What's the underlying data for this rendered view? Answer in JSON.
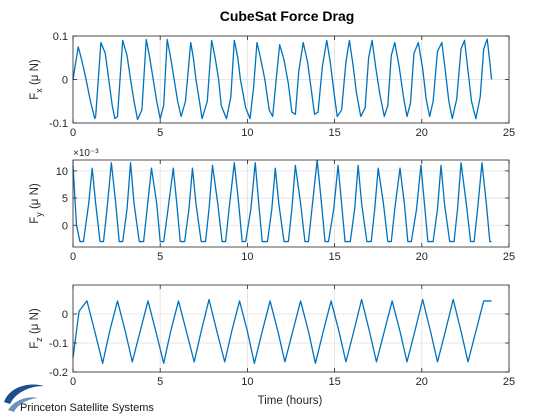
{
  "figure": {
    "title": "CubeSat Force Drag",
    "xlabel": "Time (hours)",
    "logo_text": "Princeton Satellite Systems"
  },
  "colors": {
    "line": "#0072BD",
    "axis": "#262626",
    "grid": "#dfdfdf",
    "logo_blue": "#1f4e8c"
  },
  "chart_data": [
    {
      "type": "line",
      "ylabel": {
        "main": "F",
        "sub": "x",
        "rest": " (μ N)"
      },
      "xlim": [
        0,
        25
      ],
      "ylim": [
        -0.1,
        0.1
      ],
      "xticks": [
        0,
        5,
        10,
        15,
        20,
        25
      ],
      "yticks": [
        -0.1,
        0,
        0.1
      ],
      "ytick_labels": [
        "-0.1",
        "0",
        "0.1"
      ],
      "exponent_label": "",
      "grid": true,
      "series": [
        {
          "x": [
            0,
            0.3,
            0.5,
            0.75,
            1.0,
            1.25,
            1.3,
            1.6,
            1.85,
            2.05,
            2.25,
            2.4,
            2.55,
            2.85,
            3.1,
            3.3,
            3.5,
            3.7,
            3.95,
            4.2,
            4.4,
            4.6,
            4.8,
            5.0,
            5.2,
            5.4,
            5.6,
            5.8,
            6.0,
            6.2,
            6.45,
            6.75,
            6.9,
            7.05,
            7.25,
            7.4,
            7.7,
            7.95,
            8.15,
            8.35,
            8.5,
            8.8,
            9.05,
            9.25,
            9.45,
            9.6,
            9.9,
            10.15,
            10.35,
            10.55,
            10.75,
            11.0,
            11.25,
            11.45,
            11.65,
            11.85,
            12.1,
            12.35,
            12.55,
            12.75,
            12.95,
            13.2,
            13.45,
            13.65,
            13.85,
            14.05,
            14.3,
            14.55,
            14.75,
            14.95,
            15.15,
            15.4,
            15.65,
            15.85,
            16.05,
            16.25,
            16.5,
            16.75,
            16.95,
            17.15,
            17.35,
            17.6,
            17.85,
            18.05,
            18.25,
            18.45,
            18.7,
            18.95,
            19.15,
            19.35,
            19.55,
            19.8,
            20.05,
            20.25,
            20.45,
            20.65,
            20.9,
            21.15,
            21.35,
            21.55,
            21.75,
            22.0,
            22.25,
            22.45,
            22.65,
            22.85,
            23.1,
            23.35,
            23.55,
            23.75,
            23.9,
            24.0
          ],
          "y": [
            0.0,
            0.075,
            0.045,
            0.0,
            -0.05,
            -0.09,
            -0.085,
            0.085,
            0.06,
            0.0,
            -0.06,
            -0.09,
            -0.085,
            0.09,
            0.055,
            0.0,
            -0.05,
            -0.092,
            -0.07,
            0.092,
            0.05,
            0.0,
            -0.05,
            -0.09,
            -0.06,
            0.092,
            0.05,
            0.0,
            -0.05,
            -0.085,
            -0.05,
            0.085,
            0.05,
            0.0,
            -0.05,
            -0.09,
            -0.05,
            0.09,
            0.05,
            0.0,
            -0.06,
            -0.09,
            -0.04,
            0.09,
            0.05,
            0.0,
            -0.065,
            -0.09,
            -0.02,
            0.085,
            0.05,
            0.0,
            -0.07,
            -0.085,
            0.0,
            0.08,
            0.045,
            -0.01,
            -0.075,
            -0.08,
            0.02,
            0.085,
            0.04,
            -0.02,
            -0.08,
            -0.075,
            0.03,
            0.09,
            0.04,
            -0.025,
            -0.085,
            -0.07,
            0.04,
            0.09,
            0.035,
            -0.03,
            -0.085,
            -0.065,
            0.05,
            0.09,
            0.03,
            -0.035,
            -0.085,
            -0.06,
            0.055,
            0.085,
            0.03,
            -0.04,
            -0.085,
            -0.055,
            0.06,
            0.085,
            0.025,
            -0.045,
            -0.085,
            -0.05,
            0.065,
            0.085,
            0.02,
            -0.05,
            -0.09,
            -0.045,
            0.07,
            0.09,
            0.02,
            -0.05,
            -0.09,
            -0.04,
            0.07,
            0.093,
            0.04,
            0.0
          ]
        }
      ]
    },
    {
      "type": "line",
      "ylabel": {
        "main": "F",
        "sub": "y",
        "rest": " (μ N)"
      },
      "xlim": [
        0,
        25
      ],
      "ylim": [
        -0.004,
        0.012
      ],
      "xticks": [
        0,
        5,
        10,
        15,
        20,
        25
      ],
      "yticks": [
        0,
        0.005,
        0.01
      ],
      "ytick_labels": [
        "0",
        "5",
        "10"
      ],
      "exponent_label": "×10⁻³",
      "grid": true,
      "series": [
        {
          "x": [
            0,
            0.2,
            0.4,
            0.6,
            0.9,
            1.1,
            1.3,
            1.55,
            1.75,
            1.95,
            2.2,
            2.45,
            2.65,
            2.85,
            3.1,
            3.3,
            3.5,
            3.8,
            4.05,
            4.25,
            4.5,
            4.8,
            5.0,
            5.2,
            5.45,
            5.75,
            5.95,
            6.15,
            6.4,
            6.65,
            6.85,
            7.05,
            7.35,
            7.6,
            7.8,
            8.0,
            8.3,
            8.55,
            8.75,
            8.95,
            9.25,
            9.5,
            9.7,
            9.9,
            10.2,
            10.45,
            10.65,
            10.85,
            11.15,
            11.4,
            11.6,
            11.8,
            12.1,
            12.35,
            12.55,
            12.75,
            13.05,
            13.3,
            13.5,
            13.7,
            14.0,
            14.25,
            14.45,
            14.65,
            14.95,
            15.2,
            15.4,
            15.6,
            15.9,
            16.15,
            16.35,
            16.55,
            16.85,
            17.1,
            17.3,
            17.5,
            17.8,
            18.05,
            18.25,
            18.45,
            18.75,
            19.0,
            19.2,
            19.4,
            19.7,
            19.95,
            20.15,
            20.35,
            20.65,
            20.9,
            21.1,
            21.3,
            21.6,
            21.85,
            22.05,
            22.25,
            22.55,
            22.8,
            23.0,
            23.2,
            23.45,
            23.7,
            23.9,
            24.0
          ],
          "y": [
            0.011,
            0.0,
            -0.003,
            -0.003,
            0.004,
            0.0105,
            0.004,
            -0.003,
            -0.003,
            0.003,
            0.0115,
            0.004,
            -0.003,
            -0.003,
            0.003,
            0.0115,
            0.004,
            -0.003,
            -0.003,
            0.003,
            0.0105,
            0.004,
            -0.003,
            -0.003,
            0.003,
            0.0105,
            0.004,
            -0.003,
            -0.003,
            0.003,
            0.0105,
            0.004,
            -0.003,
            -0.003,
            0.003,
            0.011,
            0.004,
            -0.003,
            -0.003,
            0.003,
            0.0115,
            0.004,
            -0.003,
            -0.003,
            0.003,
            0.0115,
            0.004,
            -0.003,
            -0.003,
            0.003,
            0.0105,
            0.004,
            -0.003,
            -0.003,
            0.003,
            0.011,
            0.004,
            -0.003,
            -0.003,
            0.003,
            0.012,
            0.004,
            -0.003,
            -0.003,
            0.003,
            0.011,
            0.004,
            -0.003,
            -0.003,
            0.003,
            0.011,
            0.004,
            -0.003,
            -0.003,
            0.003,
            0.0105,
            0.004,
            -0.003,
            -0.003,
            0.003,
            0.0105,
            0.004,
            -0.003,
            -0.003,
            0.003,
            0.011,
            0.004,
            -0.003,
            -0.003,
            0.003,
            0.011,
            0.004,
            -0.003,
            -0.003,
            0.003,
            0.0115,
            0.004,
            -0.003,
            -0.003,
            0.003,
            0.0115,
            0.004,
            -0.003,
            -0.003
          ]
        }
      ]
    },
    {
      "type": "line",
      "ylabel": {
        "main": "F",
        "sub": "z",
        "rest": " (μ N)"
      },
      "xlim": [
        0,
        25
      ],
      "ylim": [
        -0.2,
        0.1
      ],
      "xticks": [
        0,
        5,
        10,
        15,
        20,
        25
      ],
      "yticks": [
        -0.2,
        -0.1,
        0
      ],
      "ytick_labels": [
        "-0.2",
        "-0.1",
        "0"
      ],
      "exponent_label": "",
      "grid": true,
      "series": [
        {
          "x": [
            0,
            0.35,
            0.8,
            1.25,
            1.7,
            2.1,
            2.55,
            3.0,
            3.4,
            3.85,
            4.3,
            4.75,
            5.2,
            5.6,
            6.05,
            6.5,
            6.95,
            7.35,
            7.8,
            8.25,
            8.7,
            9.1,
            9.55,
            10.0,
            10.4,
            10.85,
            11.3,
            11.75,
            12.15,
            12.6,
            13.05,
            13.5,
            13.9,
            14.35,
            14.8,
            15.25,
            15.65,
            16.1,
            16.55,
            17.0,
            17.4,
            17.85,
            18.3,
            18.75,
            19.15,
            19.6,
            20.05,
            20.5,
            20.9,
            21.35,
            21.8,
            22.25,
            22.65,
            23.1,
            23.55,
            24.0
          ],
          "y": [
            -0.15,
            0.01,
            0.045,
            -0.06,
            -0.17,
            -0.06,
            0.045,
            -0.06,
            -0.165,
            -0.06,
            0.045,
            -0.06,
            -0.17,
            -0.06,
            0.045,
            -0.06,
            -0.165,
            -0.06,
            0.05,
            -0.06,
            -0.165,
            -0.06,
            0.045,
            -0.06,
            -0.17,
            -0.06,
            0.045,
            -0.06,
            -0.165,
            -0.06,
            0.045,
            -0.06,
            -0.17,
            -0.06,
            0.045,
            -0.06,
            -0.165,
            -0.06,
            0.05,
            -0.06,
            -0.165,
            -0.06,
            0.045,
            -0.06,
            -0.165,
            -0.06,
            0.05,
            -0.06,
            -0.165,
            -0.06,
            0.05,
            -0.06,
            -0.165,
            -0.06,
            0.045,
            0.045
          ]
        }
      ]
    }
  ]
}
